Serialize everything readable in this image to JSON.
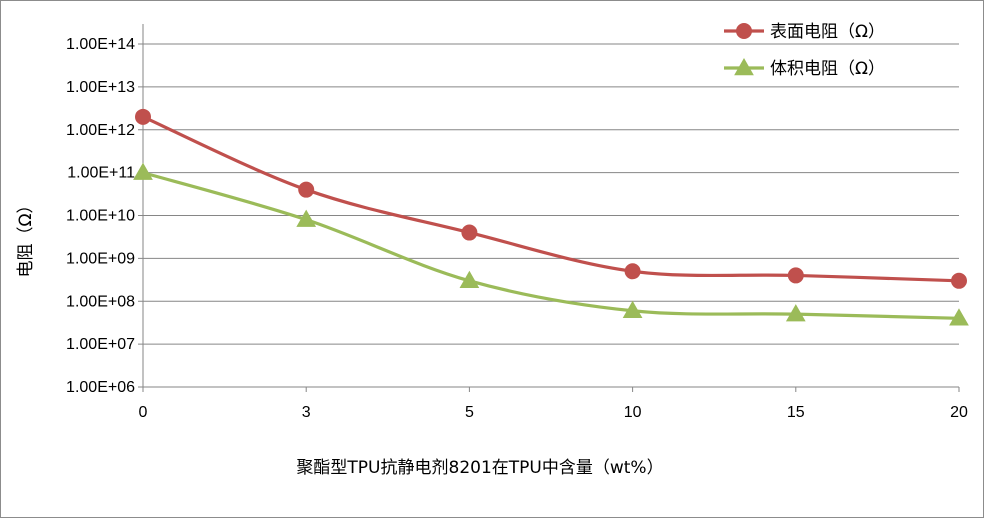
{
  "chart_data": {
    "type": "line",
    "title": "",
    "xlabel": "聚酯型TPU抗静电剂8201在TPU中含量（wt%）",
    "ylabel": "电阻（Ω）",
    "categories": [
      "0",
      "3",
      "5",
      "10",
      "15",
      "20"
    ],
    "y_scale": "log",
    "ylim": [
      1000000.0,
      100000000000000.0
    ],
    "y_tick_labels": [
      "1.00E+06",
      "1.00E+07",
      "1.00E+08",
      "1.00E+09",
      "1.00E+10",
      "1.00E+11",
      "1.00E+12",
      "1.00E+13",
      "1.00E+14"
    ],
    "grid": true,
    "legend_position": "top-right",
    "series": [
      {
        "name": "表面电阻（Ω）",
        "color": "#c0504d",
        "marker": "circle",
        "values": [
          2000000000000.0,
          40000000000.0,
          4000000000.0,
          500000000.0,
          400000000.0,
          300000000.0
        ]
      },
      {
        "name": "体积电阻（Ω）",
        "color": "#9bbb59",
        "marker": "triangle",
        "values": [
          100000000000.0,
          8000000000.0,
          300000000.0,
          60000000.0,
          50000000.0,
          40000000.0
        ]
      }
    ]
  }
}
